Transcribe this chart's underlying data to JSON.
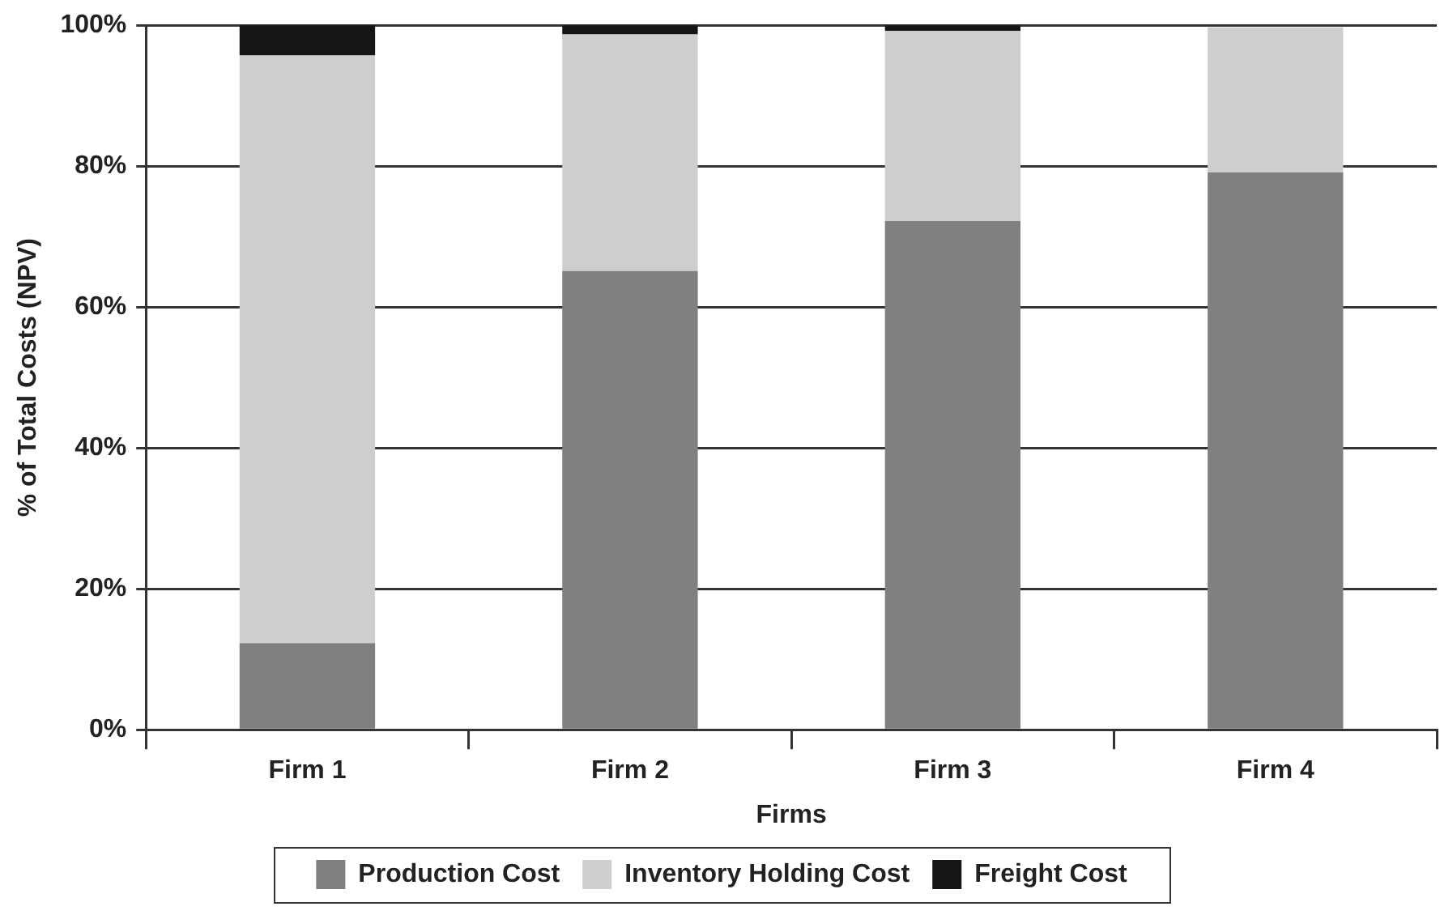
{
  "chart_data": {
    "type": "bar",
    "stacked": true,
    "xlabel": "Firms",
    "ylabel": "% of Total Costs (NPV)",
    "categories": [
      "Firm 1",
      "Firm 2",
      "Firm 3",
      "Firm 4"
    ],
    "series": [
      {
        "name": "Production Cost",
        "color": "#808080",
        "values": [
          12.3,
          65.1,
          72.2,
          79.1
        ]
      },
      {
        "name": "Inventory Holding Cost",
        "color": "#cdcfce",
        "values": [
          83.4,
          33.6,
          27.0,
          20.6
        ]
      },
      {
        "name": "Freight Cost",
        "color": "#151515",
        "values": [
          4.3,
          1.3,
          0.8,
          0
        ]
      }
    ],
    "ylim": [
      0,
      100
    ],
    "yticks": [
      {
        "value": 0,
        "label": "0%"
      },
      {
        "value": 20,
        "label": "20%"
      },
      {
        "value": 40,
        "label": "40%"
      },
      {
        "value": 60,
        "label": "60%"
      },
      {
        "value": 80,
        "label": "80%"
      },
      {
        "value": 100,
        "label": "100%"
      }
    ],
    "grid": "y",
    "legend": "bottom"
  }
}
